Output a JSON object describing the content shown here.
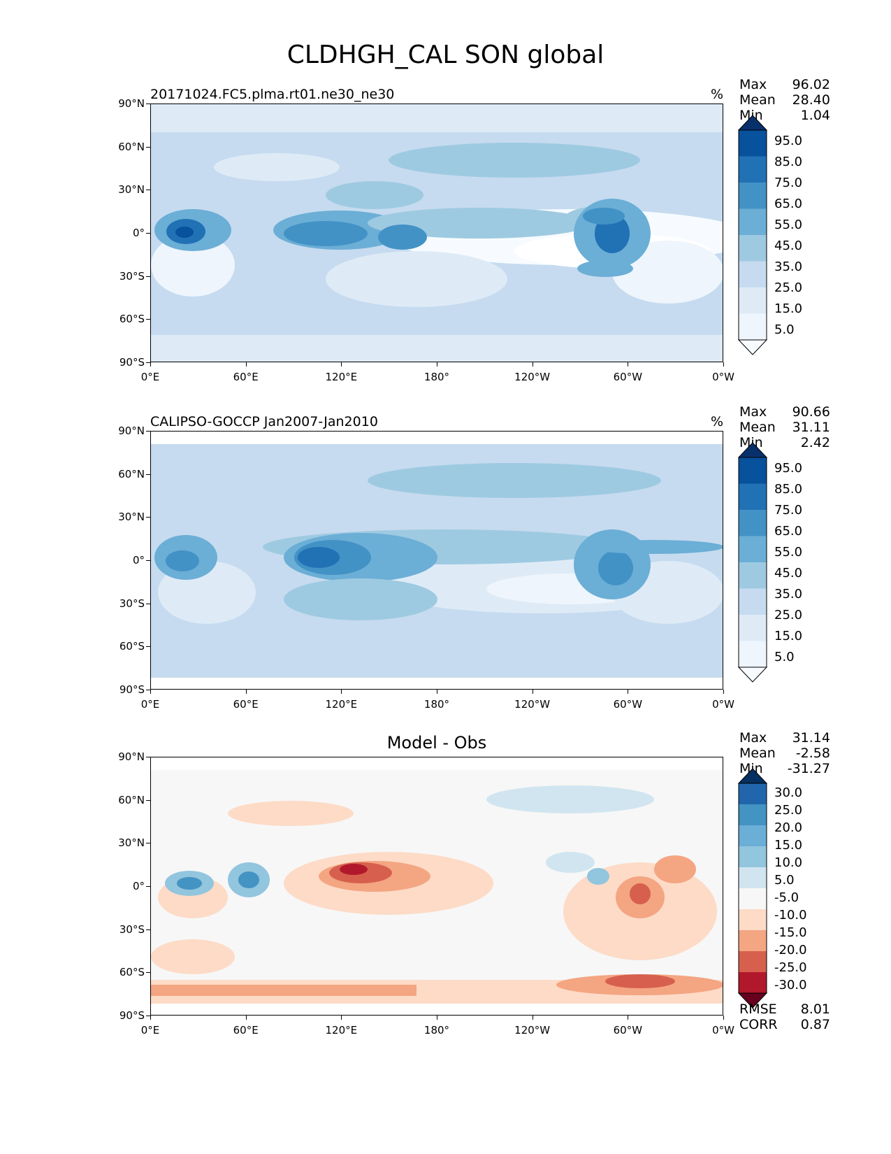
{
  "figure_title": "CLDHGH_CAL SON global",
  "axes": {
    "lat_labels": [
      "90°N",
      "60°N",
      "30°N",
      "0°",
      "30°S",
      "60°S",
      "90°S"
    ],
    "lon_labels": [
      "0°E",
      "60°E",
      "120°E",
      "180°",
      "120°W",
      "60°W",
      "0°W"
    ]
  },
  "panels": [
    {
      "id": "model",
      "label_left": "20171024.FC5.plma.rt01.ne30_ne30",
      "label_right": "%",
      "stats": {
        "max_label": "Max",
        "max": "96.02",
        "mean_label": "Mean",
        "mean": "28.40",
        "min_label": "Min",
        "min": "1.04"
      },
      "colorbar_labels": [
        "95.0",
        "85.0",
        "75.0",
        "65.0",
        "55.0",
        "45.0",
        "35.0",
        "25.0",
        "15.0",
        "5.0"
      ],
      "colorbar_colors": [
        "#08306b",
        "#08519c",
        "#2171b5",
        "#4292c6",
        "#6baed6",
        "#9ecae1",
        "#c6dbef",
        "#deebf7",
        "#eef5fc",
        "#f7fbff"
      ]
    },
    {
      "id": "obs",
      "label_left": "CALIPSO-GOCCP Jan2007-Jan2010",
      "label_right": "%",
      "stats": {
        "max_label": "Max",
        "max": "90.66",
        "mean_label": "Mean",
        "mean": "31.11",
        "min_label": "Min",
        "min": "2.42"
      },
      "colorbar_labels": [
        "95.0",
        "85.0",
        "75.0",
        "65.0",
        "55.0",
        "45.0",
        "35.0",
        "25.0",
        "15.0",
        "5.0"
      ],
      "colorbar_colors": [
        "#08306b",
        "#08519c",
        "#2171b5",
        "#4292c6",
        "#6baed6",
        "#9ecae1",
        "#c6dbef",
        "#deebf7",
        "#eef5fc",
        "#f7fbff"
      ]
    },
    {
      "id": "diff",
      "label_center": "Model - Obs",
      "stats": {
        "max_label": "Max",
        "max": "31.14",
        "mean_label": "Mean",
        "mean": "-2.58",
        "min_label": "Min",
        "min": "-31.27"
      },
      "colorbar_labels": [
        "30.0",
        "25.0",
        "20.0",
        "15.0",
        "10.0",
        "5.0",
        "-5.0",
        "-10.0",
        "-15.0",
        "-20.0",
        "-25.0",
        "-30.0"
      ],
      "colorbar_colors": [
        "#053061",
        "#2166ac",
        "#4393c3",
        "#6baed6",
        "#92c5de",
        "#d1e5f0",
        "#f7f7f7",
        "#fddbc7",
        "#f4a582",
        "#d6604d",
        "#b2182b",
        "#67001f"
      ],
      "extra": {
        "rmse_label": "RMSE",
        "rmse": "8.01",
        "corr_label": "CORR",
        "corr": "0.87"
      }
    }
  ]
}
